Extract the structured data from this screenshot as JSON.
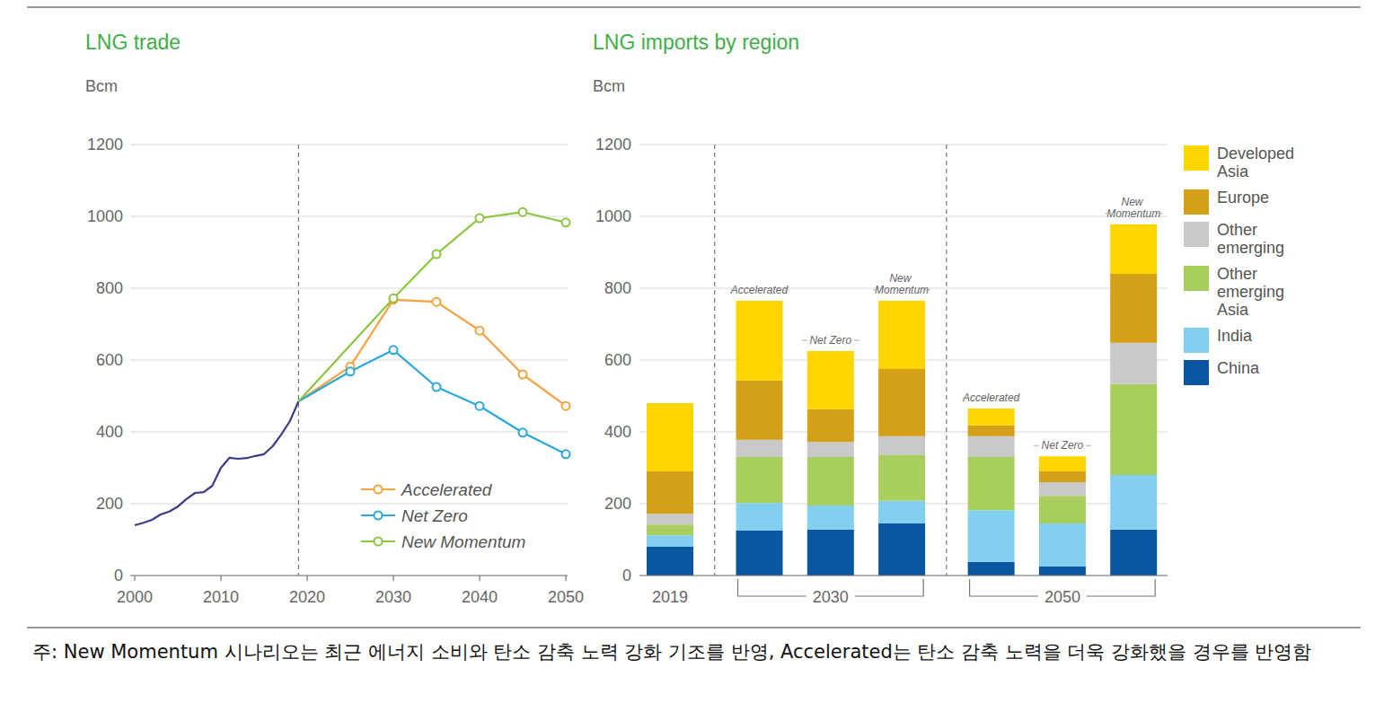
{
  "chart_data": [
    {
      "type": "line",
      "title": "LNG trade",
      "y_label": "Bcm",
      "xlim": [
        2000,
        2050
      ],
      "xticks": [
        2000,
        2010,
        2020,
        2030,
        2040,
        2050
      ],
      "ylim": [
        0,
        1200
      ],
      "yticks": [
        0,
        200,
        400,
        600,
        800,
        1000,
        1200
      ],
      "grid": true,
      "legend": "lower right",
      "series": [
        {
          "color": "#3d3a8c",
          "marker": "none",
          "x": [
            2000,
            2001,
            2002,
            2003,
            2004,
            2005,
            2006,
            2007,
            2008,
            2009,
            2010,
            2011,
            2012,
            2013,
            2014,
            2015,
            2016,
            2017,
            2018,
            2019
          ],
          "values": [
            140,
            147,
            155,
            170,
            178,
            192,
            213,
            230,
            232,
            250,
            300,
            328,
            325,
            327,
            333,
            338,
            360,
            393,
            430,
            485
          ]
        },
        {
          "name": "Accelerated",
          "color": "#f5a33c",
          "marker": "circle",
          "x": [
            2019,
            2025,
            2030,
            2035,
            2040,
            2045,
            2050
          ],
          "values": [
            485,
            582,
            768,
            762,
            682,
            560,
            472
          ]
        },
        {
          "name": "Net Zero",
          "color": "#29a8e0",
          "marker": "circle",
          "x": [
            2019,
            2025,
            2030,
            2035,
            2040,
            2045,
            2050
          ],
          "values": [
            485,
            568,
            628,
            525,
            472,
            398,
            338
          ]
        },
        {
          "name": "New Momentum",
          "color": "#8cc63f",
          "marker": "circle",
          "x": [
            2019,
            2030,
            2035,
            2040,
            2045,
            2050
          ],
          "values": [
            485,
            772,
            895,
            995,
            1012,
            983
          ]
        }
      ]
    },
    {
      "type": "bar",
      "stacked": true,
      "title": "LNG imports by region",
      "y_label": "Bcm",
      "ylim": [
        0,
        1200
      ],
      "yticks": [
        0,
        200,
        400,
        600,
        800,
        1000,
        1200
      ],
      "grid": true,
      "legend": "right",
      "categories": [
        null,
        "Accelerated",
        "Net Zero",
        "New Momentum",
        "Accelerated",
        "Net Zero",
        "New Momentum"
      ],
      "groups": [
        {
          "label": "2019",
          "count": 1
        },
        {
          "label": "2030",
          "count": 3
        },
        {
          "label": "2050",
          "count": 3
        }
      ],
      "series": [
        {
          "name": "China",
          "color": "#0a56a0",
          "values": [
            80,
            125,
            128,
            145,
            38,
            25,
            128
          ]
        },
        {
          "name": "India",
          "color": "#82cff0",
          "values": [
            32,
            77,
            67,
            63,
            144,
            120,
            152
          ]
        },
        {
          "name": "Other emerging Asia",
          "color": "#a8cf5e",
          "values": [
            30,
            128,
            135,
            127,
            148,
            77,
            253
          ]
        },
        {
          "name": "Other emerging",
          "color": "#c9c9c9",
          "values": [
            30,
            48,
            42,
            53,
            58,
            38,
            115
          ]
        },
        {
          "name": "Europe",
          "color": "#d4a017",
          "values": [
            118,
            165,
            91,
            187,
            30,
            30,
            192
          ]
        },
        {
          "name": "Developed Asia",
          "color": "#ffd500",
          "values": [
            190,
            222,
            162,
            190,
            47,
            42,
            138
          ]
        }
      ]
    }
  ],
  "footnote": "주: New Momentum 시나리오는 최근 에너지 소비와 탄소 감축 노력 강화 기조를 반영, Accelerated는 탄소 감축 노력을 더욱 강화했을 경우를 반영함"
}
